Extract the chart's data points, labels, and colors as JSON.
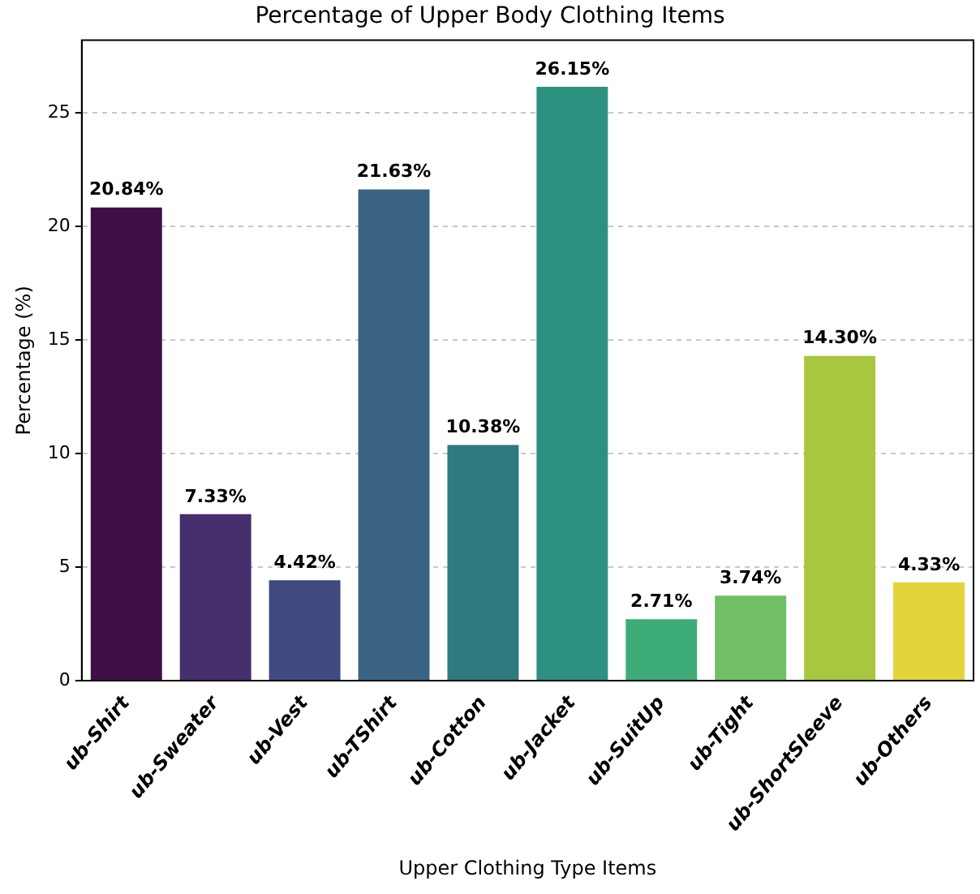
{
  "chart_data": {
    "type": "bar",
    "title": "Percentage of Upper Body Clothing Items",
    "xlabel": "Upper Clothing Type Items",
    "ylabel": "Percentage (%)",
    "categories": [
      "ub-Shirt",
      "ub-Sweater",
      "ub-Vest",
      "ub-TShirt",
      "ub-Cotton",
      "ub-Jacket",
      "ub-SuitUp",
      "ub-Tight",
      "ub-ShortSleeve",
      "ub-Others"
    ],
    "values": [
      20.84,
      7.33,
      4.42,
      21.63,
      10.38,
      26.15,
      2.71,
      3.74,
      14.3,
      4.33
    ],
    "colors": [
      "#3f0e47",
      "#472f6d",
      "#3f4a80",
      "#3a6383",
      "#2e7a80",
      "#2d9180",
      "#3eac79",
      "#70bf67",
      "#a9c73e",
      "#e3d43c"
    ],
    "value_labels": [
      "20.84%",
      "7.33%",
      "4.42%",
      "21.63%",
      "10.38%",
      "26.15%",
      "2.71%",
      "3.74%",
      "14.30%",
      "4.33%"
    ],
    "ylim": [
      0,
      28.2
    ],
    "yticks": [
      0,
      5,
      10,
      15,
      20,
      25
    ],
    "grid": "y",
    "legend": false
  }
}
